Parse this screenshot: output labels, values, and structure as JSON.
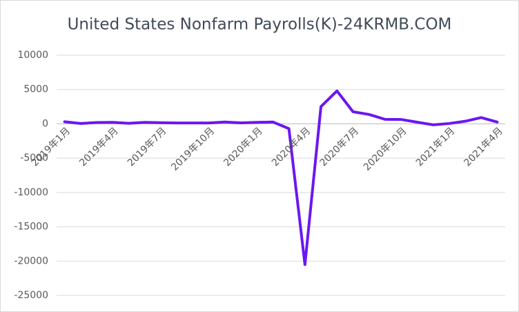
{
  "chart_data": {
    "type": "line",
    "title": "United States Nonfarm Payrolls(K)-24KRMB.COM",
    "categories": [
      "2019年1月",
      null,
      null,
      "2019年4月",
      null,
      null,
      "2019年7月",
      null,
      null,
      "2019年10月",
      null,
      null,
      "2020年1月",
      null,
      null,
      "2020年4月",
      null,
      null,
      "2020年7月",
      null,
      null,
      "2020年10月",
      null,
      null,
      "2021年1月",
      null,
      null,
      "2021年4月"
    ],
    "series": [
      {
        "name": "Nonfarm Payrolls",
        "color": "#6a17f2",
        "values": [
          312,
          56,
          196,
          224,
          75,
          224,
          164,
          130,
          136,
          128,
          266,
          145,
          214,
          273,
          -701,
          -20500,
          2509,
          4800,
          1763,
          1371,
          661,
          638,
          245,
          -140,
          49,
          379,
          916,
          266
        ]
      }
    ],
    "ylim": [
      -25000,
      10000
    ],
    "yticks": [
      -25000,
      -20000,
      -15000,
      -10000,
      -5000,
      0,
      5000,
      10000
    ],
    "grid": true
  }
}
